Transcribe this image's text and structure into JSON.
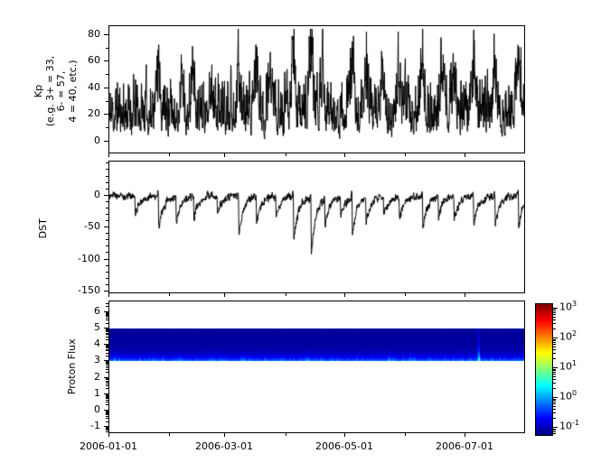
{
  "figure": {
    "background": "#ffffff",
    "text_color": "#000000",
    "axis_color": "#000000"
  },
  "x_axis": {
    "start_date": "2006-01-01",
    "end_date": "2006-08-01",
    "span_days": 212,
    "major_ticks": [
      {
        "day": 0,
        "label": "2006-01-01"
      },
      {
        "day": 59,
        "label": "2006-03-01"
      },
      {
        "day": 120,
        "label": "2006-05-01"
      },
      {
        "day": 181,
        "label": "2006-07-01"
      }
    ],
    "minor_tick_days": [
      31,
      90,
      151
    ]
  },
  "chart_data": [
    {
      "type": "line",
      "name": "kp-index",
      "ylabel_lines": [
        "Kp",
        "(e.g. 3+ = 33,",
        "6- = 57,",
        "4 = 40, etc.)"
      ],
      "line_color": "#000000",
      "ylim": [
        -9,
        86
      ],
      "yticks": [
        0,
        20,
        40,
        60,
        80
      ],
      "yminor_step": 10,
      "cadence_hours": 3,
      "typical_range": [
        0,
        40
      ],
      "synthesis": {
        "seed": 11,
        "ar": 0.5,
        "noise_pow": 2.0,
        "noise_scale": 34
      },
      "storm_events": [
        {
          "day": 25,
          "peak": 45
        },
        {
          "day": 37,
          "peak": 38
        },
        {
          "day": 43,
          "peak": 42
        },
        {
          "day": 52,
          "peak": 30
        },
        {
          "day": 66,
          "peak": 43
        },
        {
          "day": 75,
          "peak": 45
        },
        {
          "day": 83,
          "peak": 32
        },
        {
          "day": 94,
          "peak": 48
        },
        {
          "day": 103,
          "peak": 70
        },
        {
          "day": 109,
          "peak": 40
        },
        {
          "day": 124,
          "peak": 57
        },
        {
          "day": 131,
          "peak": 47
        },
        {
          "day": 140,
          "peak": 33
        },
        {
          "day": 148,
          "peak": 38
        },
        {
          "day": 160,
          "peak": 50
        },
        {
          "day": 170,
          "peak": 34
        },
        {
          "day": 176,
          "peak": 38
        },
        {
          "day": 186,
          "peak": 47
        },
        {
          "day": 197,
          "peak": 45
        },
        {
          "day": 209,
          "peak": 62
        }
      ]
    },
    {
      "type": "line",
      "name": "dst-index",
      "ylabel_lines": [
        "DST"
      ],
      "line_color": "#000000",
      "ylim": [
        -153,
        52
      ],
      "yticks": [
        0,
        -50,
        -100,
        -150
      ],
      "yminor_step": 10,
      "cadence_hours": 3,
      "baseline": -2,
      "synthesis": {
        "seed": 23,
        "wander_ar": 0.6,
        "wander_amp": 16,
        "hf_noise": 7,
        "recovery_tau_days": 2.3
      },
      "storm_events": [
        {
          "day": 13,
          "depth": -35
        },
        {
          "day": 25,
          "depth": -60
        },
        {
          "day": 34,
          "depth": -45
        },
        {
          "day": 43,
          "depth": -40
        },
        {
          "day": 55,
          "depth": -30
        },
        {
          "day": 66,
          "depth": -68
        },
        {
          "day": 75,
          "depth": -42
        },
        {
          "day": 85,
          "depth": -32
        },
        {
          "day": 94,
          "depth": -78
        },
        {
          "day": 103,
          "depth": -102
        },
        {
          "day": 110,
          "depth": -50
        },
        {
          "day": 118,
          "depth": -35
        },
        {
          "day": 124,
          "depth": -62
        },
        {
          "day": 131,
          "depth": -45
        },
        {
          "day": 140,
          "depth": -35
        },
        {
          "day": 148,
          "depth": -42
        },
        {
          "day": 160,
          "depth": -55
        },
        {
          "day": 168,
          "depth": -35
        },
        {
          "day": 176,
          "depth": -40
        },
        {
          "day": 186,
          "depth": -52
        },
        {
          "day": 197,
          "depth": -48
        },
        {
          "day": 209,
          "depth": -50
        }
      ]
    },
    {
      "type": "heatmap",
      "name": "proton-flux",
      "ylabel_lines": [
        "Proton Flux"
      ],
      "ylim": [
        -1.38,
        6.6
      ],
      "yticks": [
        -1,
        0,
        1,
        2,
        3,
        4,
        5,
        6
      ],
      "yminor_scale": "log",
      "band_y_range": [
        3,
        5
      ],
      "colormap": "jet",
      "color_exponent_range": [
        -1.3,
        3.15
      ],
      "background_field": {
        "top_exponent": -1.18,
        "bottom_boost": 0.78,
        "streak_noise": 0.5,
        "falloff_u": 0.13
      },
      "flux_event": {
        "day": 188.6,
        "width_days": 0.45,
        "boost_exponent": 1.15,
        "falloff_u": 0.5
      },
      "synthesis": {
        "seed": 5
      }
    }
  ],
  "colorbar": {
    "scale": "log",
    "base": "10",
    "tick_exponents": [
      3,
      2,
      1,
      0,
      -1
    ],
    "colormap": "jet"
  }
}
